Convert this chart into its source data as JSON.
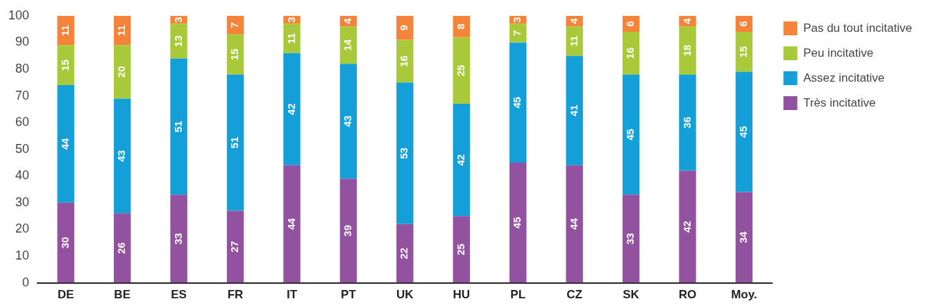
{
  "chart_data": {
    "type": "bar",
    "stacked": true,
    "categories": [
      "DE",
      "BE",
      "ES",
      "FR",
      "IT",
      "PT",
      "UK",
      "HU",
      "PL",
      "CZ",
      "SK",
      "RO",
      "Moy."
    ],
    "series": [
      {
        "name": "Très incitative",
        "color": "#9352a0",
        "values": [
          30,
          26,
          33,
          27,
          44,
          39,
          22,
          25,
          45,
          44,
          33,
          42,
          34
        ]
      },
      {
        "name": "Assez incitative",
        "color": "#159fd9",
        "values": [
          44,
          43,
          51,
          51,
          42,
          43,
          53,
          42,
          45,
          41,
          45,
          36,
          45
        ]
      },
      {
        "name": "Peu incitative",
        "color": "#a8c93a",
        "values": [
          15,
          20,
          13,
          15,
          11,
          14,
          16,
          25,
          7,
          11,
          16,
          18,
          15
        ]
      },
      {
        "name": "Pas du tout incitative",
        "color": "#f5843a",
        "values": [
          11,
          11,
          3,
          7,
          3,
          4,
          9,
          8,
          3,
          4,
          6,
          4,
          6
        ]
      }
    ],
    "ylim": [
      0,
      100
    ],
    "yticks": [
      0,
      10,
      20,
      30,
      40,
      50,
      60,
      70,
      80,
      90,
      100
    ],
    "grid": false,
    "legend": "top right",
    "data_labels": true
  }
}
